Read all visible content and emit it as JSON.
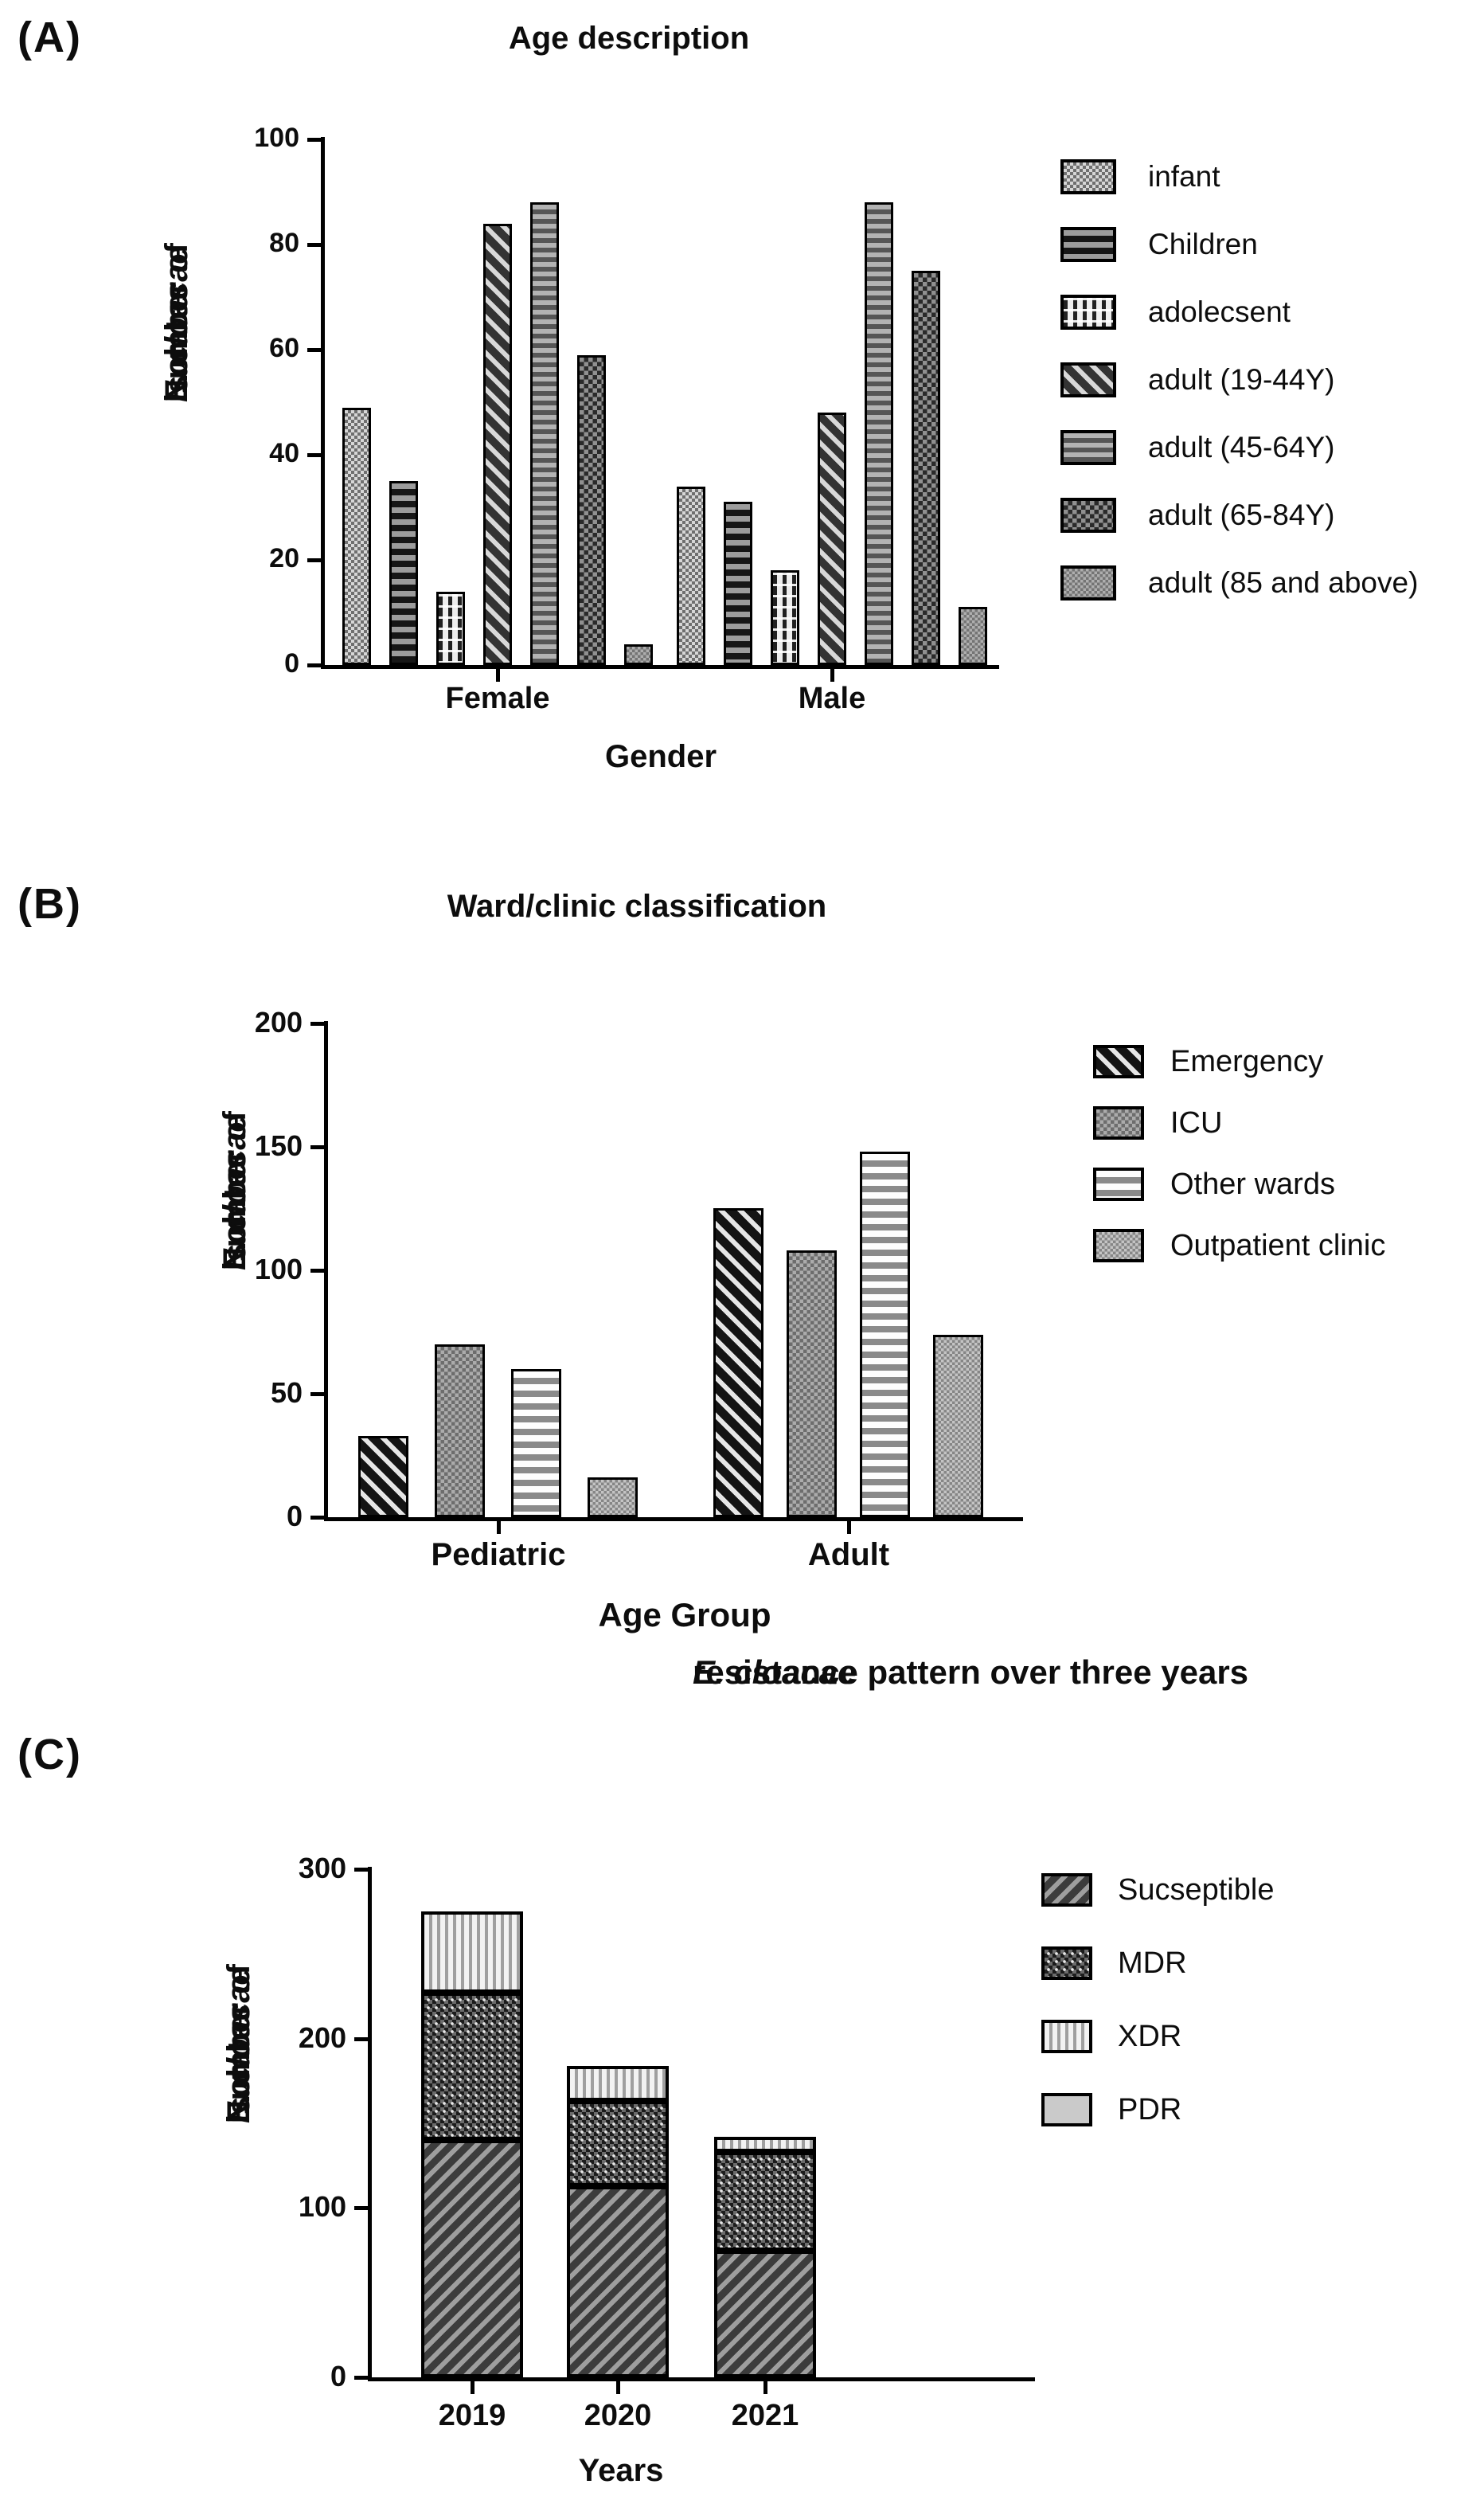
{
  "figure": {
    "description": "Three-panel bar figure of E. cloacae isolates",
    "panels": [
      "(A)",
      "(B)",
      "(C)"
    ]
  },
  "chart_data": [
    {
      "id": "A",
      "type": "bar",
      "panel_label": "(A)",
      "title": "Age description",
      "xlabel": "Gender",
      "ylabel_parts": {
        "pre": "Number of ",
        "italic": "E. cloacae",
        "post": " isolates"
      },
      "ylim": [
        0,
        100
      ],
      "yticks": [
        0,
        20,
        40,
        60,
        80,
        100
      ],
      "grid": false,
      "legend_position": "right",
      "categories": [
        "Female",
        "Male"
      ],
      "series": [
        {
          "name": "infant",
          "pattern": "infant",
          "values": [
            49,
            34
          ]
        },
        {
          "name": "Children",
          "pattern": "children",
          "values": [
            35,
            31
          ]
        },
        {
          "name": "adolecsent",
          "pattern": "adolescent",
          "values": [
            14,
            18
          ]
        },
        {
          "name": "adult (19-44Y)",
          "pattern": "a1944",
          "values": [
            84,
            48
          ]
        },
        {
          "name": "adult (45-64Y)",
          "pattern": "a4564",
          "values": [
            88,
            88
          ]
        },
        {
          "name": "adult (65-84Y)",
          "pattern": "a6584",
          "values": [
            59,
            75
          ]
        },
        {
          "name": "adult (85 and above)",
          "pattern": "a85",
          "values": [
            4,
            11
          ]
        }
      ]
    },
    {
      "id": "B",
      "type": "bar",
      "panel_label": "(B)",
      "title": "Ward/clinic classification",
      "xlabel": "Age Group",
      "ylabel_parts": {
        "pre": "Number of ",
        "italic": "E. cloacae",
        "post": " isolates"
      },
      "ylim": [
        0,
        200
      ],
      "yticks": [
        0,
        50,
        100,
        150,
        200
      ],
      "grid": false,
      "legend_position": "right",
      "categories": [
        "Pediatric",
        "Adult"
      ],
      "series": [
        {
          "name": "Emergency",
          "pattern": "emergency",
          "values": [
            33,
            125
          ]
        },
        {
          "name": "ICU",
          "pattern": "icu",
          "values": [
            70,
            108
          ]
        },
        {
          "name": "Other wards",
          "pattern": "otherwards",
          "values": [
            60,
            148
          ]
        },
        {
          "name": "Outpatient clinic",
          "pattern": "outpatient",
          "values": [
            16,
            74
          ]
        }
      ]
    },
    {
      "id": "C",
      "type": "stacked-bar",
      "panel_label": "(C)",
      "title_parts": {
        "italic": "E. cloacae",
        "rest": " resistance pattern over three years"
      },
      "xlabel": "Years",
      "ylabel_parts": {
        "pre": "Number of ",
        "italic": "E. cloacae",
        "post": " isolates"
      },
      "ylim": [
        0,
        300
      ],
      "yticks": [
        0,
        100,
        200,
        300
      ],
      "grid": false,
      "legend_position": "right",
      "categories": [
        "2019",
        "2020",
        "2021"
      ],
      "series": [
        {
          "name": "Sucseptible",
          "pattern": "susceptible",
          "values": [
            140,
            113,
            75
          ]
        },
        {
          "name": "MDR",
          "pattern": "mdr",
          "values": [
            87,
            50,
            58
          ]
        },
        {
          "name": "XDR",
          "pattern": "xdr",
          "values": [
            48,
            21,
            9
          ]
        },
        {
          "name": "PDR",
          "pattern": "pdr",
          "values": [
            0,
            0,
            0
          ]
        }
      ],
      "totals": [
        275,
        184,
        142
      ]
    }
  ]
}
